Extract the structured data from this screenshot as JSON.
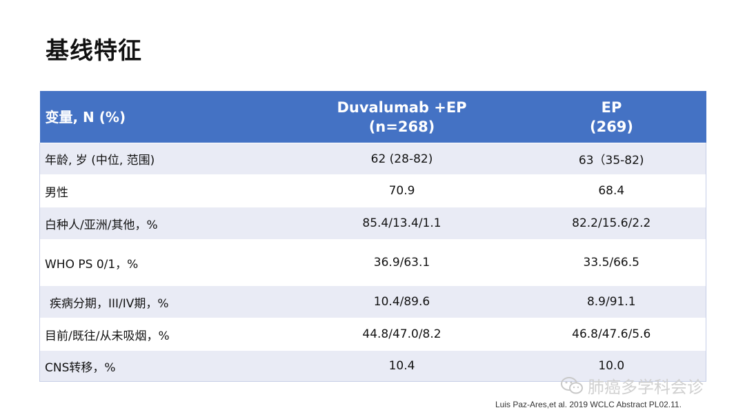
{
  "title": "基线特征",
  "table": {
    "headers": {
      "col1": "变量, N (%)",
      "col2_line1": "Duvalumab +EP",
      "col2_line2": "(n=268)",
      "col3_line1": "EP",
      "col3_line2": "(269)"
    },
    "rows": [
      {
        "label": "年龄, 岁 (中位, 范围)",
        "a": "62 (28-82)",
        "b": "63（35-82)"
      },
      {
        "label": "男性",
        "a": "70.9",
        "b": "68.4"
      },
      {
        "label": "白种人/亚洲/其他，%",
        "a": "85.4/13.4/1.1",
        "b": "82.2/15.6/2.2"
      },
      {
        "label": "WHO PS 0/1，%",
        "a": "36.9/63.1",
        "b": "33.5/66.5"
      },
      {
        "label": "疾病分期，III/IV期，%",
        "a": "10.4/89.6",
        "b": "8.9/91.1"
      },
      {
        "label": "目前/既往/从未吸烟，%",
        "a": "44.8/47.0/8.2",
        "b": "46.8/47.6/5.6"
      },
      {
        "label": "CNS转移，%",
        "a": "10.4",
        "b": "10.0"
      }
    ]
  },
  "watermark": {
    "text": "肺癌多学科会诊",
    "icon": "wechat-icon"
  },
  "citation": "Luis Paz-Ares,et al. 2019 WCLC Abstract PL02.11."
}
